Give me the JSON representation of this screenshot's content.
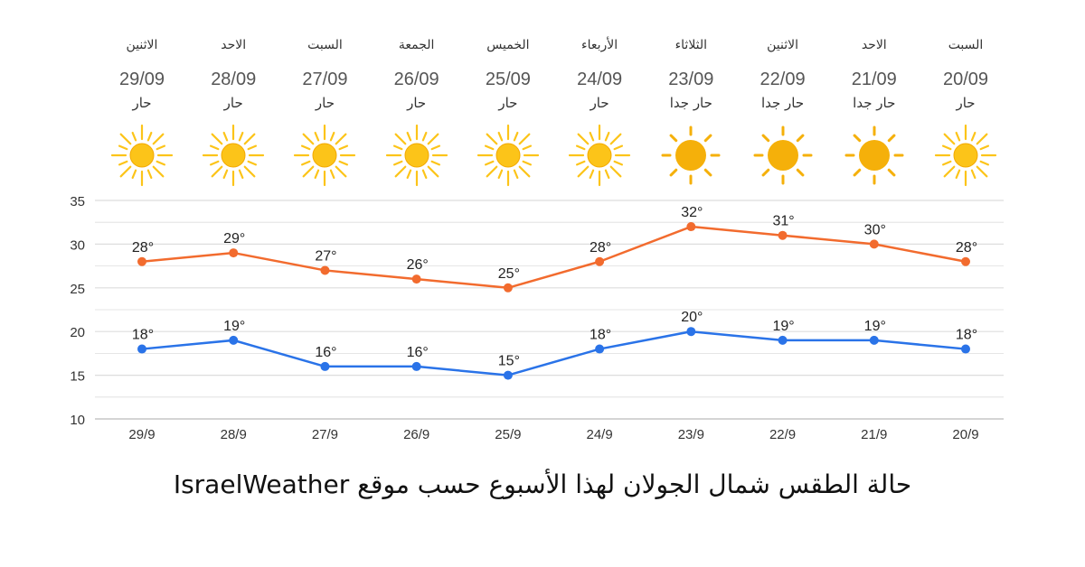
{
  "forecast": [
    {
      "day": "السبت",
      "date": "20/09",
      "condition": "حار",
      "icon": "sun-icon"
    },
    {
      "day": "الاحد",
      "date": "21/09",
      "condition": "حار جدا",
      "icon": "sun-hot-icon"
    },
    {
      "day": "الاثنين",
      "date": "22/09",
      "condition": "حار جدا",
      "icon": "sun-hot-icon"
    },
    {
      "day": "الثلاثاء",
      "date": "23/09",
      "condition": "حار جدا",
      "icon": "sun-hot-icon"
    },
    {
      "day": "الأربعاء",
      "date": "24/09",
      "condition": "حار",
      "icon": "sun-icon"
    },
    {
      "day": "الخميس",
      "date": "25/09",
      "condition": "حار",
      "icon": "sun-icon"
    },
    {
      "day": "الجمعة",
      "date": "26/09",
      "condition": "حار",
      "icon": "sun-icon"
    },
    {
      "day": "السبت",
      "date": "27/09",
      "condition": "حار",
      "icon": "sun-icon"
    },
    {
      "day": "الاحد",
      "date": "28/09",
      "condition": "حار",
      "icon": "sun-icon"
    },
    {
      "day": "الاثنين",
      "date": "29/09",
      "condition": "حار",
      "icon": "sun-icon"
    }
  ],
  "colors": {
    "high": "#f26b2e",
    "low": "#2a73e8",
    "sun": "#fcc419",
    "sun_hot": "#f5b00a",
    "grid": "#dddddd",
    "text": "#333333"
  },
  "chart_data": {
    "type": "line",
    "direction": "right-to-left",
    "categories": [
      "20/9",
      "21/9",
      "22/9",
      "23/9",
      "24/9",
      "25/9",
      "26/9",
      "27/9",
      "28/9",
      "29/9"
    ],
    "series": [
      {
        "key": "high",
        "values": [
          28,
          30,
          31,
          32,
          28,
          25,
          26,
          27,
          29,
          28
        ],
        "labels": [
          "28°",
          "30°",
          "31°",
          "32°",
          "28°",
          "25°",
          "26°",
          "27°",
          "29°",
          "28°"
        ]
      },
      {
        "key": "low",
        "values": [
          18,
          19,
          19,
          20,
          18,
          15,
          16,
          16,
          19,
          18
        ],
        "labels": [
          "18°",
          "19°",
          "19°",
          "20°",
          "18°",
          "15°",
          "16°",
          "16°",
          "19°",
          "18°"
        ]
      }
    ],
    "yticks": [
      10,
      15,
      20,
      25,
      30,
      35
    ],
    "ylim": [
      10,
      35
    ],
    "grid": true,
    "legend": "none"
  },
  "caption": "حالة الطقس شمال الجولان لهذا الأسبوع حسب موقع IsraelWeather"
}
